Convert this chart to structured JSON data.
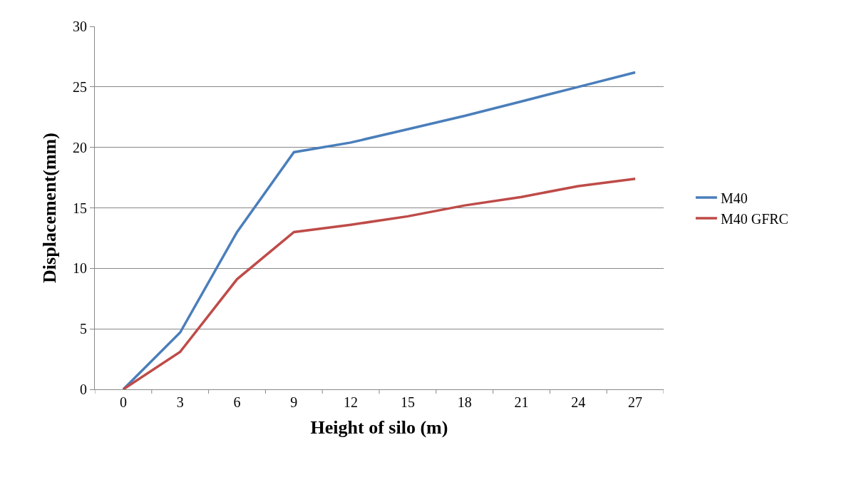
{
  "chart_data": {
    "type": "line",
    "xlabel": "Height of silo (m)",
    "ylabel": "Displacement(mm)",
    "categories": [
      "0",
      "3",
      "6",
      "9",
      "12",
      "15",
      "18",
      "21",
      "24",
      "27"
    ],
    "series": [
      {
        "name": "M40",
        "color": "#4a7ebb",
        "values": [
          0,
          4.7,
          13,
          19.6,
          20.4,
          21.5,
          22.6,
          23.8,
          25.0,
          26.2
        ]
      },
      {
        "name": "M40 GFRC",
        "color": "#be4b48",
        "values": [
          0,
          3.1,
          9.1,
          13,
          13.6,
          14.3,
          15.2,
          15.9,
          16.8,
          17.4
        ]
      }
    ],
    "ylim": [
      0,
      30
    ],
    "yticks": [
      0,
      5,
      10,
      15,
      20,
      25,
      30
    ],
    "grid": "y",
    "legend": "right",
    "marker": "none",
    "line_style": "solid"
  }
}
